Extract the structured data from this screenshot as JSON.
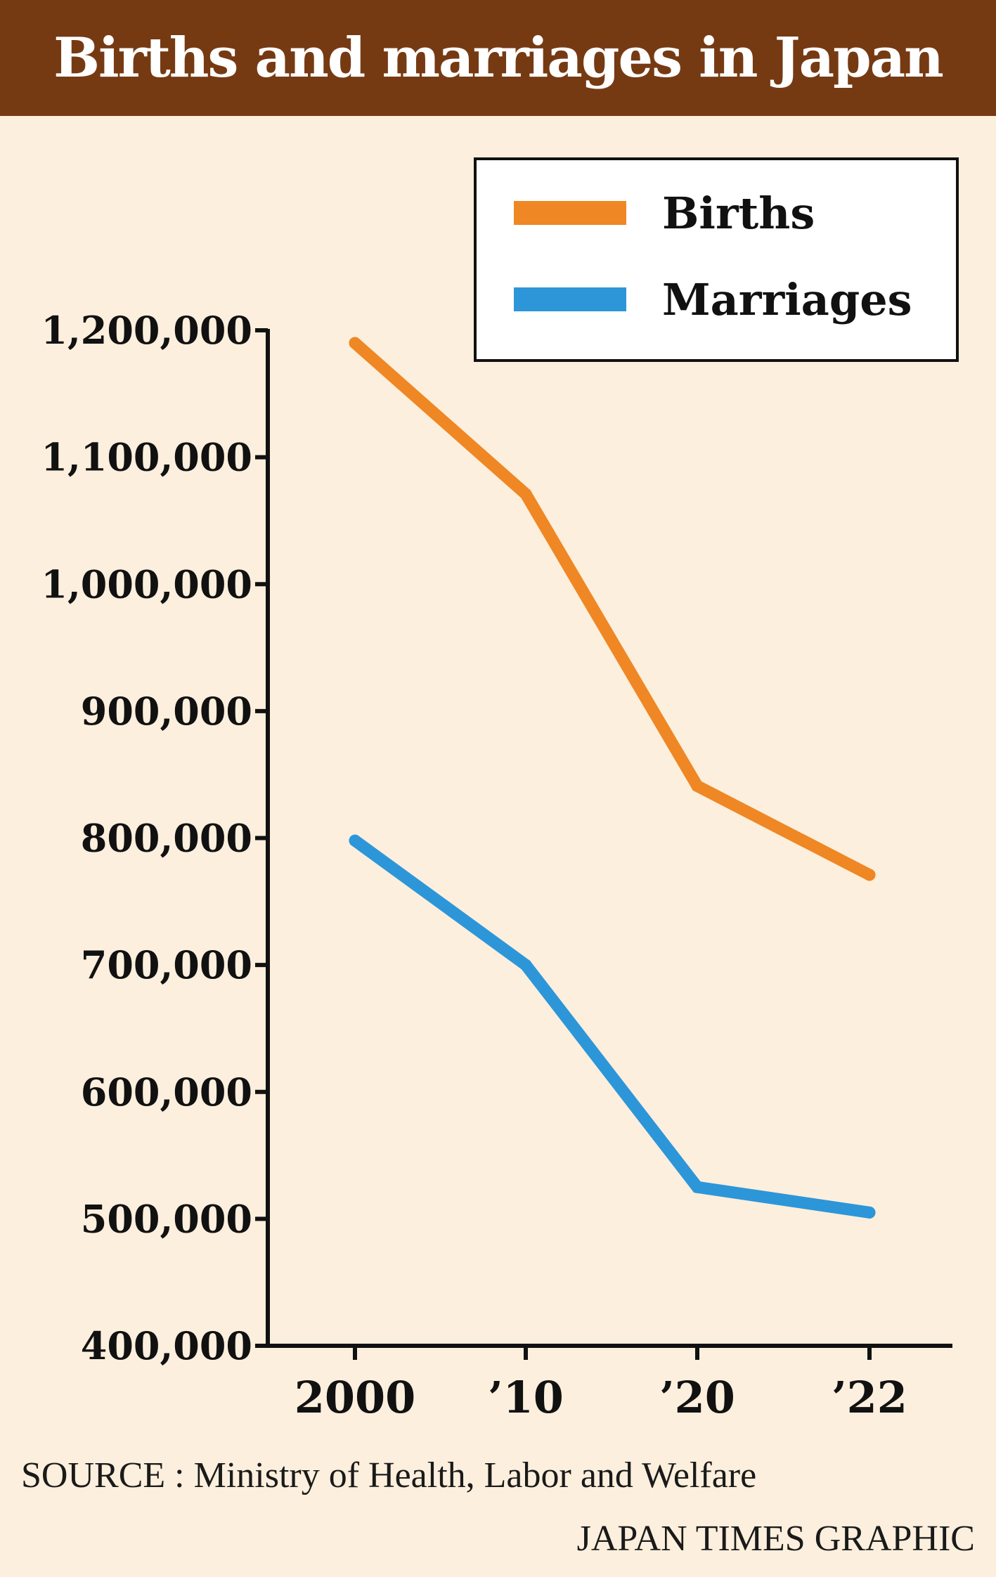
{
  "title": "Births and marriages in Japan",
  "source": "SOURCE : Ministry of Health, Labor and Welfare",
  "credit": "JAPAN TIMES GRAPHIC",
  "colors": {
    "background": "#fcefdd",
    "title_bar": "#763a13",
    "births": "#ef8724",
    "marriages": "#2d96d8",
    "axis": "#111111"
  },
  "chart_data": {
    "type": "line",
    "categories": [
      "2000",
      "’10",
      "’20",
      "’22"
    ],
    "series": [
      {
        "name": "Births",
        "color": "#ef8724",
        "values": [
          1190000,
          1071000,
          841000,
          771000
        ]
      },
      {
        "name": "Marriages",
        "color": "#2d96d8",
        "values": [
          798000,
          700000,
          525000,
          505000
        ]
      }
    ],
    "ylim": [
      400000,
      1200000
    ],
    "yticks": [
      400000,
      500000,
      600000,
      700000,
      800000,
      900000,
      1000000,
      1100000,
      1200000
    ],
    "ytick_labels": [
      "400,000",
      "500,000",
      "600,000",
      "700,000",
      "800,000",
      "900,000",
      "1,000,000",
      "1,100,000",
      "1,200,000"
    ],
    "xlabel": "",
    "ylabel": "",
    "legend": "top-right",
    "grid": false
  }
}
